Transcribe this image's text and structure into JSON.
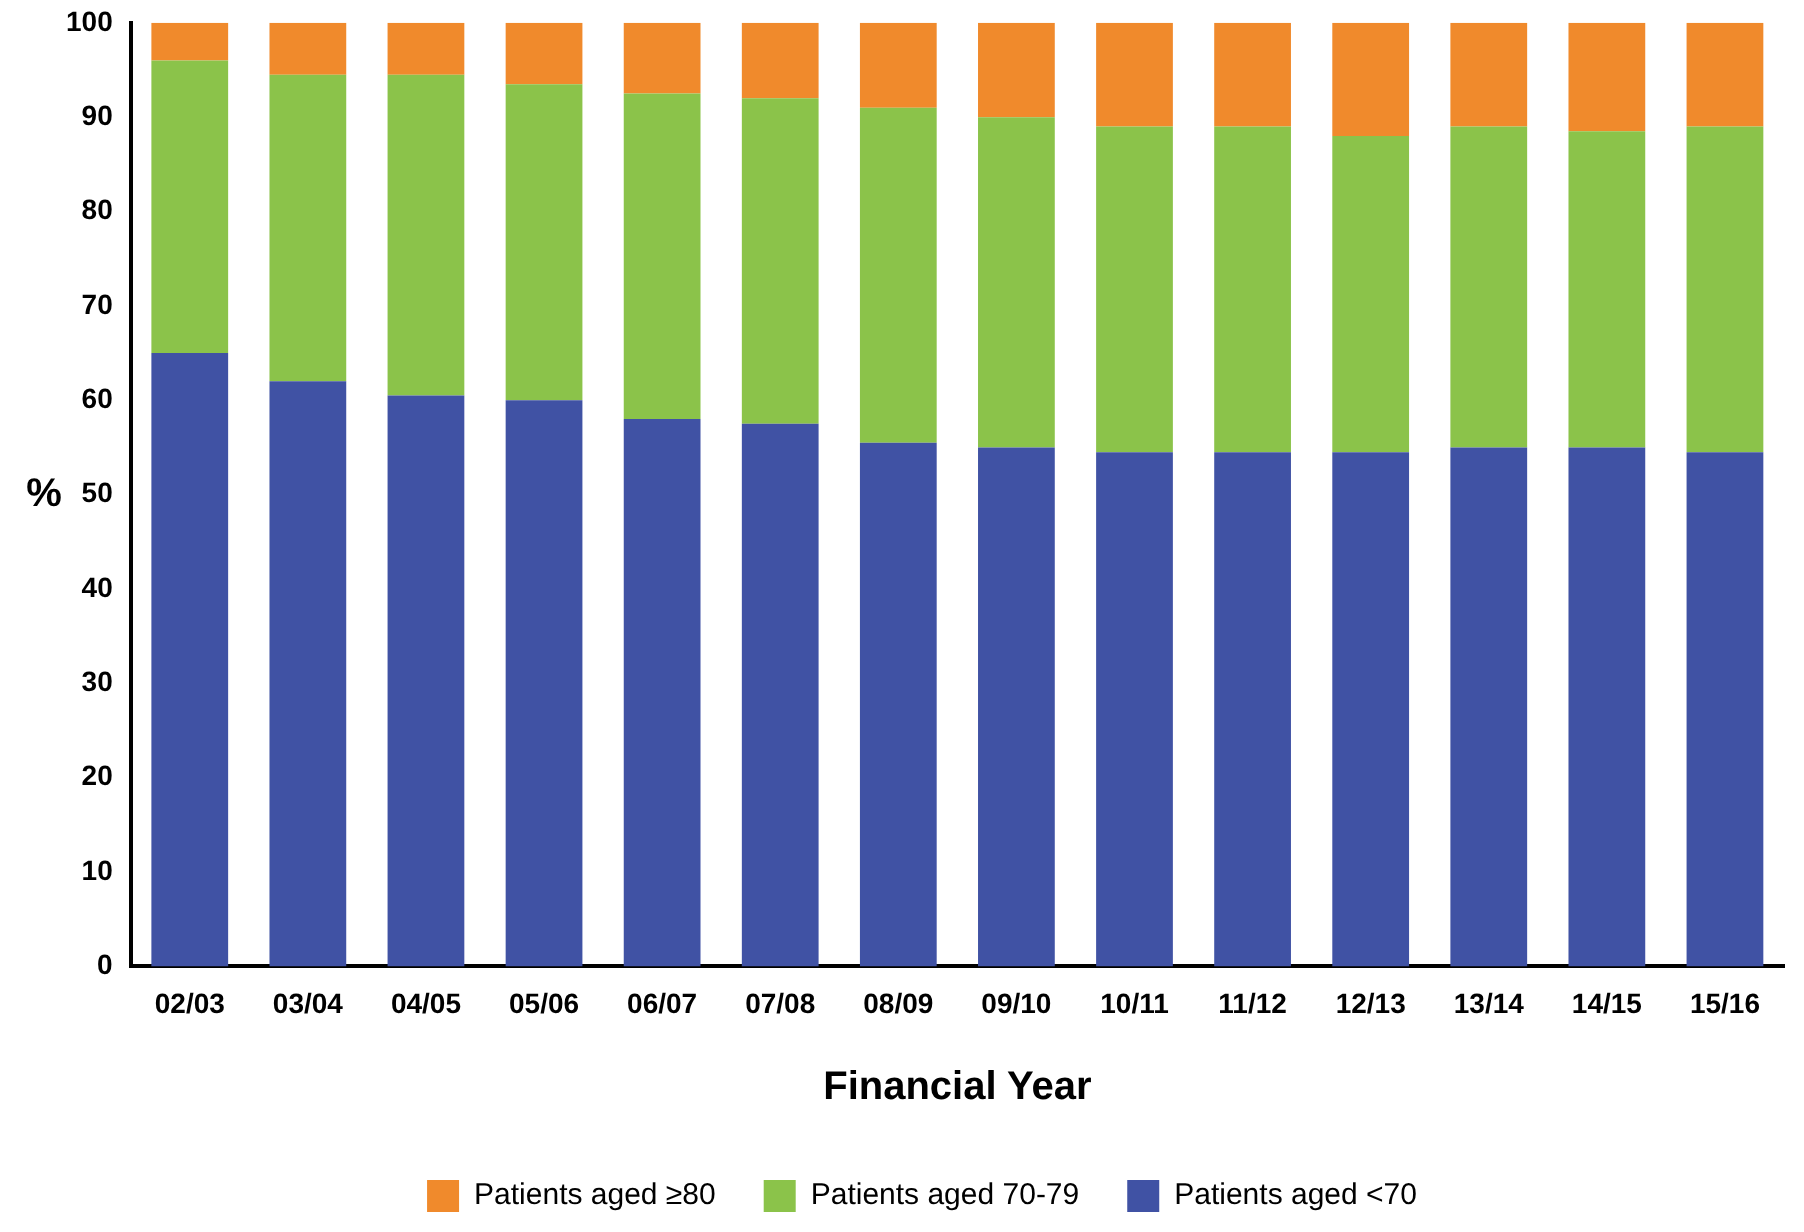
{
  "chart_data": {
    "type": "bar",
    "stacked": true,
    "xlabel": "Financial Year",
    "ylabel": "%",
    "categories": [
      "02/03",
      "03/04",
      "04/05",
      "05/06",
      "06/07",
      "07/08",
      "08/09",
      "09/10",
      "10/11",
      "11/12",
      "12/13",
      "13/14",
      "14/15",
      "15/16"
    ],
    "series": [
      {
        "name": "Patients aged <70",
        "color": "#4052a4",
        "values": [
          65,
          62,
          60.5,
          60,
          58,
          57.5,
          55.5,
          55,
          54.5,
          54.5,
          54.5,
          55,
          55,
          54.5
        ]
      },
      {
        "name": "Patients aged 70-79",
        "color": "#8bc34a",
        "values": [
          31,
          32.5,
          34,
          33.5,
          34.5,
          34.5,
          35.5,
          35,
          34.5,
          34.5,
          33.5,
          34,
          33.5,
          34.5
        ]
      },
      {
        "name": "Patients aged ≥80",
        "color": "#f08a2c",
        "values": [
          4,
          5.5,
          5.5,
          6.5,
          7.5,
          8,
          9,
          10,
          11,
          11,
          12,
          11,
          11.5,
          11
        ]
      }
    ],
    "ylim": [
      0,
      100
    ],
    "yticks": [
      0,
      10,
      20,
      30,
      40,
      50,
      60,
      70,
      80,
      90,
      100
    ],
    "grid": false,
    "legend": "bottom"
  }
}
